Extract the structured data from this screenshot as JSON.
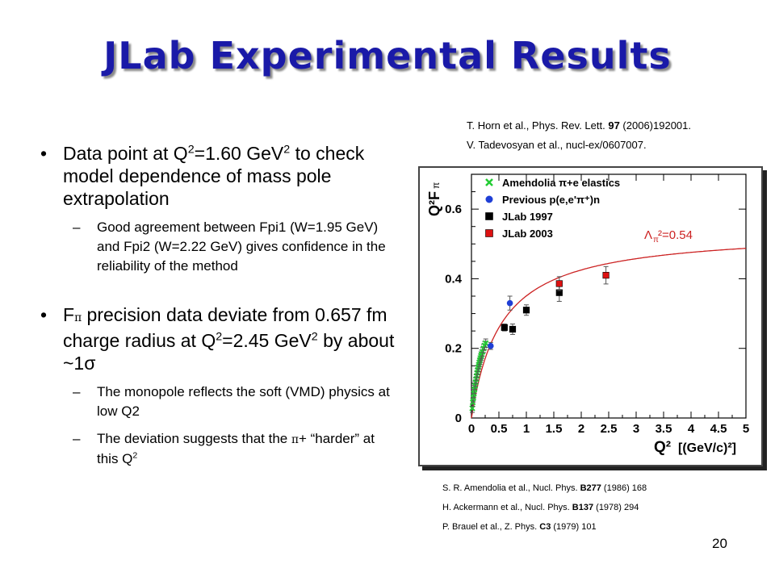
{
  "slide": {
    "title": "JLab Experimental Results",
    "page_number": "20"
  },
  "bullets": {
    "b1": {
      "pre": "Data point at Q",
      "sup1": "2",
      "mid": "=1.60 GeV",
      "sup2": "2",
      "post": " to check model dependence of mass pole extrapolation",
      "sub": "Good agreement between Fpi1 (W=1.95 GeV) and Fpi2 (W=2.22 GeV) gives confidence in the reliability of the method"
    },
    "b2": {
      "f": "F",
      "pi": "π",
      "a": " precision data deviate from 0.657 fm charge radius at Q",
      "sup1": "2",
      "b": "=2.45 GeV",
      "sup2": "2",
      "c": " by about ~1σ",
      "sub1": "The monopole reflects the soft (VMD) physics at low Q2",
      "sub2_pre": "The deviation suggests that the ",
      "sub2_pi": "π",
      "sub2_mid": "+ “harder” at this Q",
      "sub2_sup": "2"
    },
    "bullet_char": "•",
    "dash_char": "–"
  },
  "refs_top": {
    "r1_pre": "T. Horn et al.,  Phys. Rev. Lett. ",
    "r1_bold": "97",
    "r1_post": " (2006)192001.",
    "r2": "V. Tadevosyan et al., nucl-ex/0607007."
  },
  "refs_bottom": {
    "r1_pre": "S. R. Amendolia et al., Nucl. Phys. ",
    "r1_bold": "B277",
    "r1_post": " (1986) 168",
    "r2_pre": "H. Ackermann et al., Nucl. Phys. ",
    "r2_bold": "B137",
    "r2_post": " (1978) 294",
    "r3_pre": "P. Brauel et al., Z. Phys. ",
    "r3_bold": "C3",
    "r3_post": " (1979) 101"
  },
  "chart_data": {
    "type": "scatter",
    "ylabel": "Q²F",
    "ylabel_sub": "π",
    "xlabel": "Q²",
    "xlabel_unit": "[(GeV/c)²]",
    "xlim": [
      0,
      5
    ],
    "ylim": [
      0,
      0.7
    ],
    "x_ticks": [
      "0",
      "0.5",
      "1",
      "1.5",
      "2",
      "2.5",
      "3",
      "3.5",
      "4",
      "4.5",
      "5"
    ],
    "x_tick_values": [
      0,
      0.5,
      1,
      1.5,
      2,
      2.5,
      3,
      3.5,
      4,
      4.5,
      5
    ],
    "y_ticks": [
      "0",
      "0.2",
      "0.4",
      "0.6"
    ],
    "y_tick_values": [
      0,
      0.2,
      0.4,
      0.6
    ],
    "curve_label": "Λπ²=0.54",
    "curve_label_main": "Λ",
    "curve_label_sub": "π",
    "curve_label_rest": "²=0.54",
    "curve": {
      "lambda2": 0.54
    },
    "colors": {
      "amendolia": "#22cc33",
      "previous": "#1f3fd6",
      "jlab1997": "#000000",
      "jlab2003": "#dd1111",
      "curve": "#cc2222"
    },
    "series": [
      {
        "name": "Amendolia π+e elastics",
        "marker": "x",
        "points": [
          [
            0.015,
            0.028
          ],
          [
            0.025,
            0.045
          ],
          [
            0.035,
            0.058
          ],
          [
            0.045,
            0.07
          ],
          [
            0.055,
            0.082
          ],
          [
            0.065,
            0.093
          ],
          [
            0.075,
            0.103
          ],
          [
            0.085,
            0.112
          ],
          [
            0.095,
            0.121
          ],
          [
            0.105,
            0.13
          ],
          [
            0.115,
            0.138
          ],
          [
            0.125,
            0.146
          ],
          [
            0.135,
            0.153
          ],
          [
            0.145,
            0.16
          ],
          [
            0.155,
            0.166
          ],
          [
            0.165,
            0.172
          ],
          [
            0.175,
            0.178
          ],
          [
            0.185,
            0.183
          ],
          [
            0.2,
            0.19
          ],
          [
            0.22,
            0.2
          ],
          [
            0.24,
            0.208
          ],
          [
            0.26,
            0.215
          ]
        ],
        "err": 0.012
      },
      {
        "name": "Previous p(e,e'π⁺)n",
        "marker": "circle",
        "points": [
          [
            0.35,
            0.207
          ],
          [
            0.7,
            0.33
          ]
        ],
        "err": [
          0.01,
          0.02
        ]
      },
      {
        "name": "JLab 1997",
        "marker": "square",
        "points": [
          [
            0.6,
            0.26
          ],
          [
            0.75,
            0.255
          ],
          [
            1.0,
            0.31
          ],
          [
            1.6,
            0.36
          ]
        ],
        "err": [
          0.01,
          0.015,
          0.015,
          0.025
        ]
      },
      {
        "name": "JLab 2003",
        "marker": "square",
        "points": [
          [
            1.6,
            0.386
          ],
          [
            2.45,
            0.41
          ]
        ],
        "err": [
          0.02,
          0.025
        ]
      }
    ]
  }
}
